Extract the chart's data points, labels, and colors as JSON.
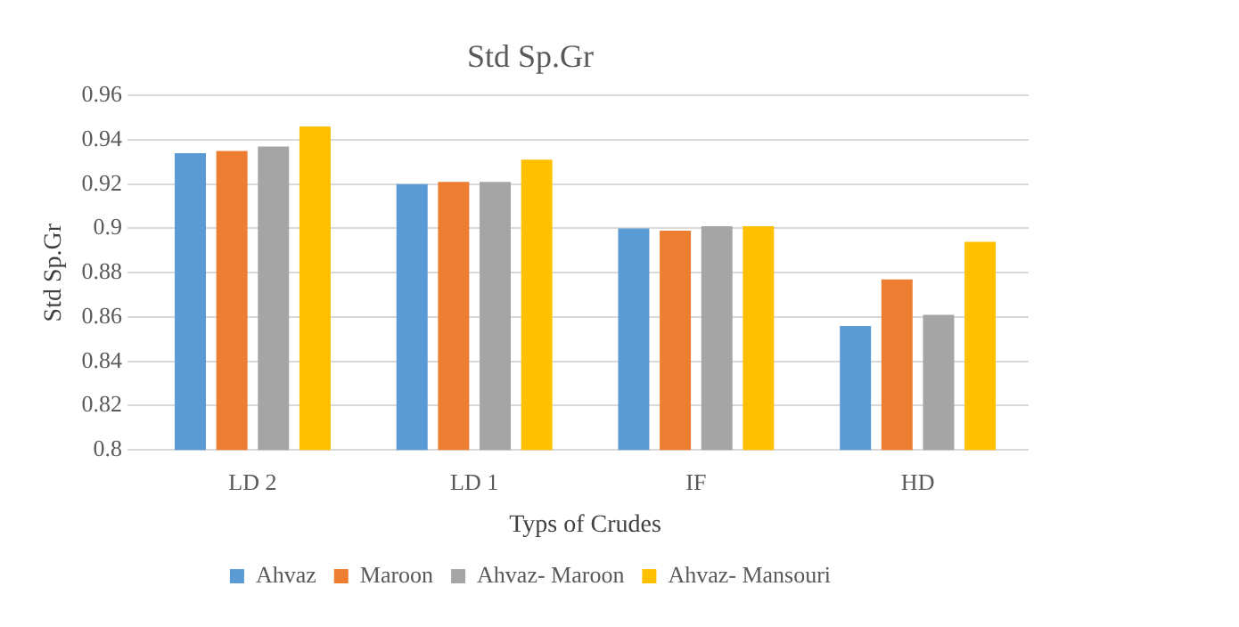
{
  "chart_data": {
    "type": "bar",
    "title": "Std Sp.Gr",
    "xlabel": "Typs of Crudes",
    "ylabel": "Std Sp.Gr",
    "categories": [
      "LD 2",
      "LD 1",
      "IF",
      "HD"
    ],
    "series": [
      {
        "name": "Ahvaz",
        "color": "#5b9bd5",
        "values": [
          0.934,
          0.92,
          0.9,
          0.856
        ]
      },
      {
        "name": "Maroon",
        "color": "#ed7d31",
        "values": [
          0.935,
          0.921,
          0.899,
          0.877
        ]
      },
      {
        "name": "Ahvaz- Maroon",
        "color": "#a5a5a5",
        "values": [
          0.937,
          0.921,
          0.901,
          0.861
        ]
      },
      {
        "name": "Ahvaz- Mansouri",
        "color": "#ffc000",
        "values": [
          0.946,
          0.931,
          0.901,
          0.894
        ]
      }
    ],
    "ylim": [
      0.8,
      0.96
    ],
    "yticks": [
      0.8,
      0.82,
      0.84,
      0.86,
      0.88,
      0.9,
      0.92,
      0.94,
      0.96
    ],
    "grid": "y",
    "legend": "bottom"
  }
}
